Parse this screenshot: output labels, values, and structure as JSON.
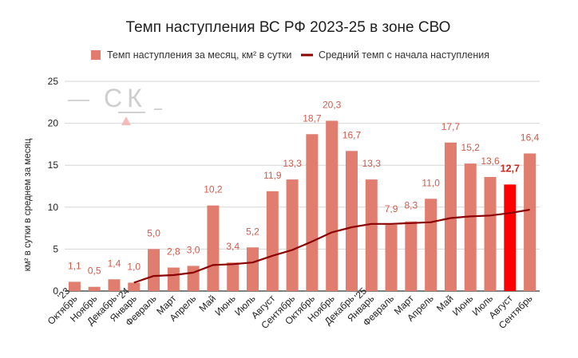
{
  "chart_data": {
    "type": "bar",
    "title": "Темп наступления ВС РФ 2023-25 в зоне СВО",
    "ylabel": "км² в сутки в среднем за месяц",
    "ylim": [
      0,
      25
    ],
    "yticks": [
      "0",
      "5",
      "10",
      "15",
      "20",
      "25"
    ],
    "grid": true,
    "legend_position": "top",
    "categories": [
      "'23 Октябрь",
      "Ноябрь",
      "Декабрь",
      "'24 Январь",
      "Февраль",
      "Март",
      "Апрель",
      "Май",
      "Июнь",
      "Июль",
      "Август",
      "Сентябрь",
      "Октябрь",
      "Ноябрь",
      "Декабрь",
      "'25 Январь",
      "Февраль",
      "Март",
      "Апрель",
      "Май",
      "Июнь",
      "Июль",
      "Август",
      "Сентябрь"
    ],
    "series": [
      {
        "name": "Темп наступления за месяц, км² в сутки",
        "kind": "bar",
        "color": "#e07d6e",
        "highlight_color": "#ff0000",
        "highlight_index": 22,
        "values": [
          1.1,
          0.5,
          1.4,
          1.0,
          5.0,
          2.8,
          3.0,
          10.2,
          3.4,
          5.2,
          11.9,
          13.3,
          18.7,
          20.3,
          16.7,
          13.3,
          7.9,
          8.3,
          11.0,
          17.7,
          15.2,
          13.6,
          12.7,
          16.4
        ],
        "labels": [
          "1,1",
          "0,5",
          "1,4",
          "1,0",
          "5,0",
          "2,8",
          "3,0",
          "10,2",
          "3,4",
          "5,2",
          "11,9",
          "13,3",
          "18,7",
          "20,3",
          "16,7",
          "13,3",
          "7,9",
          "8,3",
          "11,0",
          "17,7",
          "15,2",
          "13,6",
          "12,7",
          "16,4"
        ]
      },
      {
        "name": "Средний темп с начала наступления",
        "kind": "line",
        "color": "#8b0000",
        "start_index": 3,
        "values": [
          null,
          null,
          null,
          1.0,
          1.8,
          1.9,
          2.2,
          3.1,
          3.2,
          3.4,
          4.2,
          4.9,
          5.9,
          7.0,
          7.6,
          8.0,
          8.0,
          8.1,
          8.2,
          8.7,
          8.9,
          9.0,
          9.3,
          9.7
        ]
      }
    ]
  },
  "watermark": {
    "text": "СК"
  }
}
